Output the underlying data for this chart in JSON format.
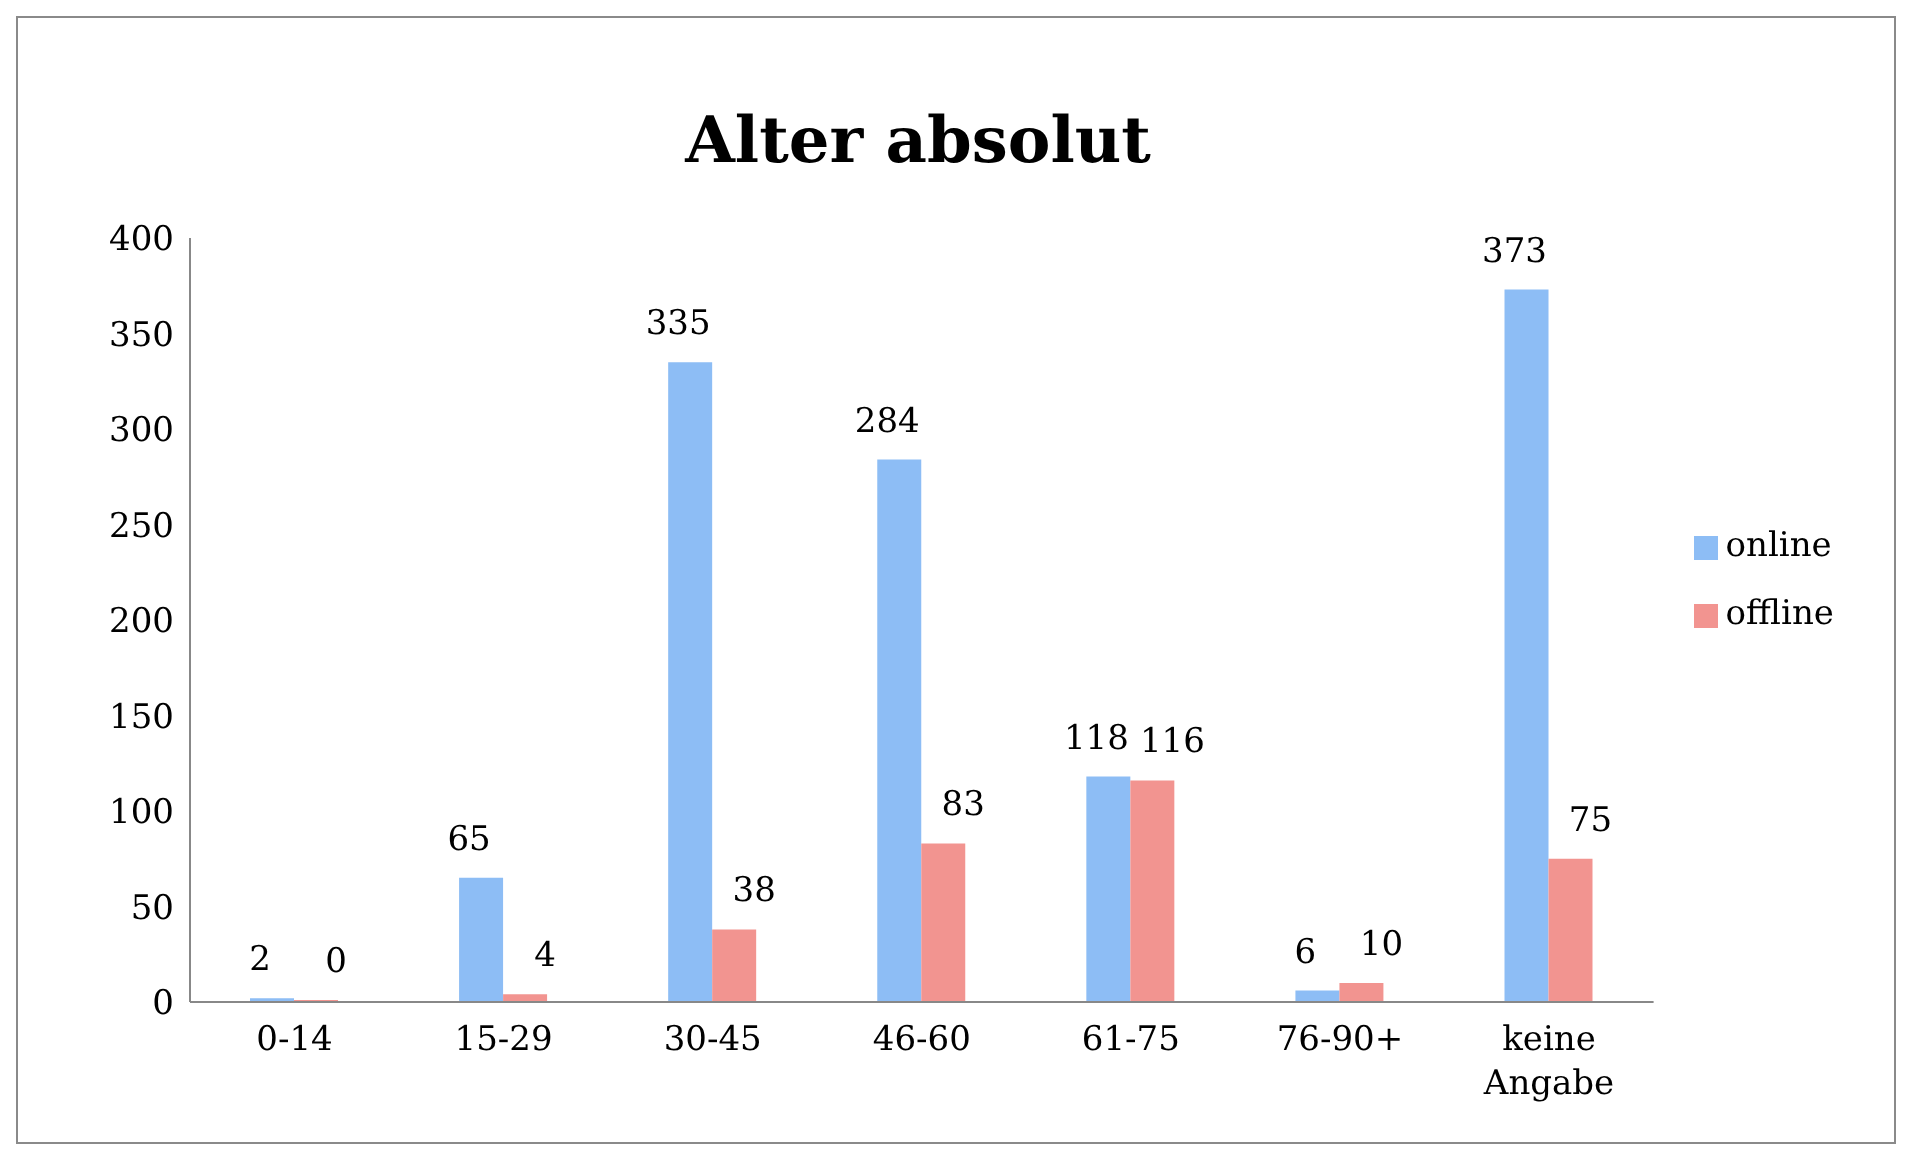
{
  "chart_data": {
    "type": "bar",
    "title": "Alter absolut",
    "categories": [
      "0-14",
      "15-29",
      "30-45",
      "46-60",
      "61-75",
      "76-90+",
      "keine Angabe"
    ],
    "series": [
      {
        "name": "online",
        "color": "#8dbdf5",
        "values": [
          2,
          65,
          335,
          284,
          118,
          6,
          373
        ]
      },
      {
        "name": "offline",
        "color": "#f29490",
        "values": [
          0,
          4,
          38,
          83,
          116,
          10,
          75
        ]
      }
    ],
    "ylim": [
      0,
      400
    ],
    "yticks": [
      0,
      50,
      100,
      150,
      200,
      250,
      300,
      350,
      400
    ],
    "grid": false,
    "legend": "right",
    "data_labels": true
  }
}
